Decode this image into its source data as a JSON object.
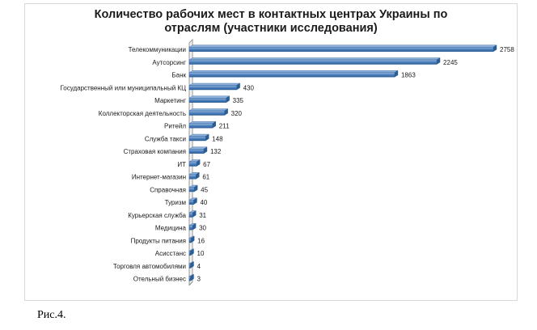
{
  "chart_data": {
    "type": "bar",
    "orientation": "horizontal",
    "title_line1": "Количество рабочих мест в контактных центрах Украины по",
    "title_line2": "отраслям (участники исследования)",
    "categories": [
      "Телекоммуникации",
      "Аутсорсинг",
      "Банк",
      "Государственный или муниципальный КЦ",
      "Маркетинг",
      "Коллекторская деятельность",
      "Ритейл",
      "Служба такси",
      "Страховая компания",
      "ИТ",
      "Интернет-магазин",
      "Справочная",
      "Туризм",
      "Курьерская служба",
      "Медицина",
      "Продукты питания",
      "Асисстанс",
      "Торговля автомобилями",
      "Отельный бизнес"
    ],
    "values": [
      2758,
      2245,
      1863,
      430,
      335,
      320,
      211,
      148,
      132,
      67,
      61,
      45,
      40,
      31,
      30,
      16,
      10,
      4,
      3
    ],
    "xlim": [
      0,
      2758
    ],
    "grid": false,
    "legend": "none",
    "bar_color": "#4a7ebb",
    "bar_color_light": "#8fb2dc",
    "bar_color_dark": "#2b5d95"
  },
  "caption": "Рис.4."
}
